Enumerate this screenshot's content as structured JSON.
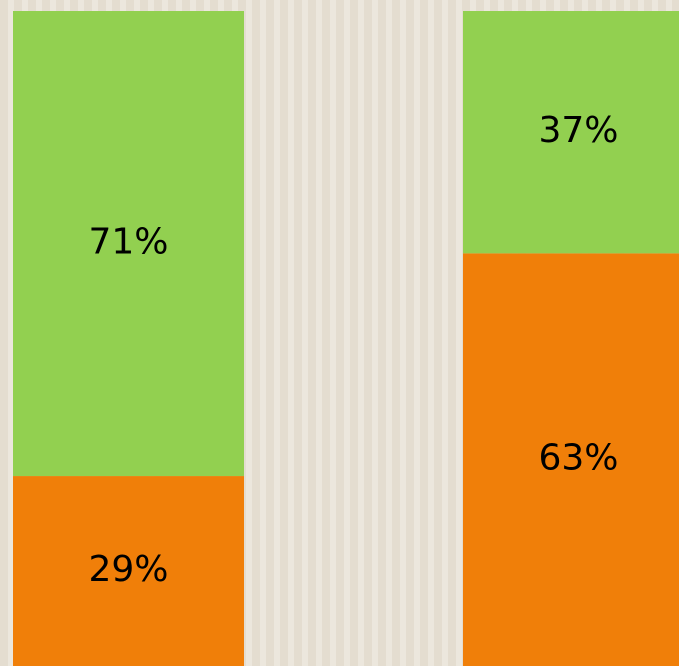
{
  "chart_data": {
    "type": "bar",
    "stacked": true,
    "categories": [
      null,
      null
    ],
    "series": [
      {
        "color": "#f07f09",
        "values": [
          29,
          63
        ],
        "value_labels": [
          "29%",
          "63%"
        ]
      },
      {
        "color": "#92d050",
        "values": [
          71,
          37
        ],
        "value_labels": [
          "71%",
          "37%"
        ]
      }
    ],
    "ylim": [
      0,
      100
    ]
  }
}
